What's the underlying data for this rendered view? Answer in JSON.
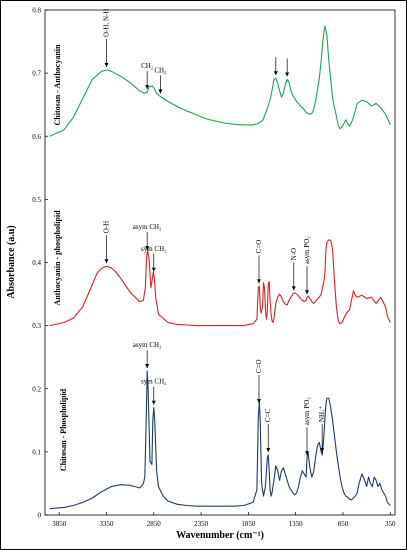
{
  "chart_data": {
    "type": "line",
    "xlabel": "Wavenumber (cm⁻¹)",
    "ylabel": "Absorbance (a.u)",
    "x_ticks": [
      3850,
      3350,
      2850,
      2350,
      1850,
      1350,
      850,
      350
    ],
    "xlim": [
      4000,
      300
    ],
    "ylim": [
      0,
      0.8
    ],
    "y_ticks": [
      0,
      0.1,
      0.2,
      0.3,
      0.4,
      0.5,
      0.6,
      0.7,
      0.8
    ],
    "y_tick_labels": [
      "0",
      "0.1",
      "0.2",
      "0.3",
      "0.4",
      "0.5",
      "0.6",
      "0.7",
      "0.8"
    ],
    "series": [
      {
        "name": "Chitosan - Anthocyanin",
        "color": "#1aa64a",
        "x": [
          3950,
          3800,
          3700,
          3600,
          3500,
          3400,
          3350,
          3300,
          3200,
          3100,
          3000,
          2950,
          2920,
          2900,
          2870,
          2850,
          2820,
          2780,
          2700,
          2600,
          2500,
          2400,
          2300,
          2200,
          2100,
          2000,
          1900,
          1800,
          1750,
          1700,
          1680,
          1660,
          1640,
          1620,
          1600,
          1580,
          1560,
          1540,
          1520,
          1500,
          1480,
          1460,
          1440,
          1420,
          1400,
          1380,
          1360,
          1340,
          1320,
          1300,
          1280,
          1260,
          1240,
          1220,
          1200,
          1180,
          1160,
          1140,
          1120,
          1100,
          1080,
          1060,
          1040,
          1020,
          1000,
          980,
          960,
          940,
          920,
          900,
          880,
          860,
          840,
          820,
          800,
          780,
          760,
          740,
          720,
          700,
          650,
          600,
          550,
          500,
          450,
          400,
          350
        ],
        "values": [
          0.6,
          0.61,
          0.63,
          0.66,
          0.69,
          0.703,
          0.705,
          0.703,
          0.695,
          0.685,
          0.672,
          0.668,
          0.67,
          0.678,
          0.68,
          0.677,
          0.668,
          0.663,
          0.655,
          0.647,
          0.64,
          0.634,
          0.628,
          0.624,
          0.621,
          0.619,
          0.618,
          0.618,
          0.62,
          0.625,
          0.632,
          0.64,
          0.648,
          0.658,
          0.672,
          0.69,
          0.692,
          0.684,
          0.672,
          0.662,
          0.668,
          0.682,
          0.69,
          0.685,
          0.672,
          0.665,
          0.66,
          0.655,
          0.652,
          0.648,
          0.645,
          0.642,
          0.638,
          0.636,
          0.635,
          0.636,
          0.642,
          0.655,
          0.672,
          0.692,
          0.72,
          0.755,
          0.775,
          0.76,
          0.72,
          0.69,
          0.66,
          0.645,
          0.632,
          0.618,
          0.612,
          0.615,
          0.62,
          0.626,
          0.62,
          0.616,
          0.622,
          0.63,
          0.64,
          0.652,
          0.657,
          0.655,
          0.648,
          0.652,
          0.645,
          0.635,
          0.618
        ]
      },
      {
        "name": "Anthocyanin - phospholipid",
        "color": "#e02020",
        "x": [
          3950,
          3800,
          3700,
          3600,
          3500,
          3450,
          3400,
          3350,
          3300,
          3250,
          3200,
          3100,
          3000,
          2960,
          2940,
          2925,
          2915,
          2900,
          2880,
          2865,
          2855,
          2845,
          2830,
          2800,
          2700,
          2600,
          2500,
          2400,
          2300,
          2200,
          2100,
          2000,
          1900,
          1800,
          1760,
          1745,
          1735,
          1725,
          1715,
          1700,
          1690,
          1680,
          1670,
          1660,
          1650,
          1640,
          1630,
          1620,
          1610,
          1600,
          1590,
          1580,
          1560,
          1540,
          1520,
          1500,
          1480,
          1460,
          1440,
          1420,
          1400,
          1380,
          1360,
          1340,
          1320,
          1300,
          1280,
          1260,
          1240,
          1230,
          1220,
          1200,
          1180,
          1160,
          1140,
          1120,
          1100,
          1080,
          1060,
          1050,
          1040,
          1030,
          1020,
          1000,
          980,
          960,
          940,
          920,
          900,
          880,
          860,
          840,
          820,
          800,
          780,
          760,
          740,
          720,
          700,
          650,
          600,
          550,
          500,
          450,
          400,
          380,
          350
        ],
        "values": [
          0.3,
          0.305,
          0.312,
          0.33,
          0.365,
          0.383,
          0.391,
          0.394,
          0.392,
          0.385,
          0.375,
          0.353,
          0.338,
          0.34,
          0.36,
          0.41,
          0.42,
          0.405,
          0.36,
          0.375,
          0.385,
          0.376,
          0.345,
          0.318,
          0.305,
          0.302,
          0.301,
          0.3,
          0.3,
          0.3,
          0.3,
          0.3,
          0.3,
          0.303,
          0.31,
          0.36,
          0.363,
          0.33,
          0.32,
          0.33,
          0.368,
          0.36,
          0.328,
          0.31,
          0.322,
          0.365,
          0.37,
          0.34,
          0.318,
          0.308,
          0.305,
          0.31,
          0.335,
          0.345,
          0.35,
          0.345,
          0.338,
          0.334,
          0.333,
          0.34,
          0.345,
          0.35,
          0.352,
          0.35,
          0.347,
          0.343,
          0.34,
          0.338,
          0.34,
          0.345,
          0.347,
          0.343,
          0.338,
          0.335,
          0.338,
          0.342,
          0.345,
          0.35,
          0.365,
          0.372,
          0.385,
          0.42,
          0.432,
          0.436,
          0.435,
          0.42,
          0.37,
          0.33,
          0.308,
          0.303,
          0.305,
          0.312,
          0.318,
          0.322,
          0.325,
          0.34,
          0.355,
          0.348,
          0.345,
          0.348,
          0.343,
          0.345,
          0.335,
          0.345,
          0.33,
          0.315,
          0.305
        ]
      },
      {
        "name": "Chitosan - Phospholipid",
        "color": "#1c3a6e",
        "x": [
          3950,
          3800,
          3700,
          3600,
          3500,
          3400,
          3300,
          3200,
          3100,
          3050,
          3000,
          2980,
          2960,
          2945,
          2930,
          2920,
          2910,
          2890,
          2870,
          2860,
          2850,
          2840,
          2820,
          2800,
          2750,
          2700,
          2600,
          2500,
          2400,
          2300,
          2200,
          2100,
          2000,
          1900,
          1800,
          1760,
          1745,
          1735,
          1725,
          1710,
          1690,
          1670,
          1650,
          1640,
          1630,
          1620,
          1610,
          1600,
          1580,
          1560,
          1540,
          1520,
          1500,
          1480,
          1460,
          1440,
          1420,
          1400,
          1380,
          1360,
          1340,
          1320,
          1300,
          1280,
          1260,
          1240,
          1230,
          1220,
          1200,
          1180,
          1160,
          1140,
          1120,
          1100,
          1080,
          1070,
          1060,
          1050,
          1040,
          1030,
          1020,
          1000,
          980,
          960,
          940,
          920,
          900,
          880,
          860,
          840,
          820,
          800,
          780,
          760,
          740,
          720,
          700,
          680,
          650,
          620,
          600,
          580,
          560,
          540,
          520,
          500,
          480,
          460,
          440,
          420,
          400,
          380,
          350
        ],
        "values": [
          0.01,
          0.012,
          0.015,
          0.02,
          0.027,
          0.037,
          0.045,
          0.048,
          0.047,
          0.045,
          0.043,
          0.046,
          0.05,
          0.06,
          0.15,
          0.228,
          0.2,
          0.085,
          0.08,
          0.15,
          0.17,
          0.15,
          0.07,
          0.045,
          0.03,
          0.022,
          0.017,
          0.015,
          0.014,
          0.014,
          0.014,
          0.014,
          0.014,
          0.015,
          0.02,
          0.04,
          0.155,
          0.18,
          0.15,
          0.05,
          0.03,
          0.045,
          0.09,
          0.095,
          0.07,
          0.04,
          0.03,
          0.035,
          0.055,
          0.078,
          0.07,
          0.055,
          0.07,
          0.075,
          0.065,
          0.055,
          0.045,
          0.04,
          0.035,
          0.032,
          0.035,
          0.045,
          0.06,
          0.07,
          0.065,
          0.06,
          0.09,
          0.1,
          0.075,
          0.06,
          0.068,
          0.09,
          0.11,
          0.115,
          0.1,
          0.095,
          0.11,
          0.13,
          0.155,
          0.175,
          0.185,
          0.185,
          0.17,
          0.15,
          0.125,
          0.1,
          0.08,
          0.06,
          0.045,
          0.035,
          0.03,
          0.028,
          0.025,
          0.024,
          0.027,
          0.03,
          0.035,
          0.05,
          0.065,
          0.055,
          0.045,
          0.06,
          0.05,
          0.045,
          0.06,
          0.055,
          0.045,
          0.05,
          0.04,
          0.035,
          0.03,
          0.02,
          0.015
        ]
      }
    ],
    "annotations": [
      {
        "series": 0,
        "text": "O-H, N-H",
        "x": 3350,
        "rotate": -90
      },
      {
        "series": 0,
        "text": "CH₂",
        "x": 2920
      },
      {
        "series": 0,
        "text": "CH₂",
        "x": 2780
      },
      {
        "series": 0,
        "text": "",
        "x": 1560
      },
      {
        "series": 0,
        "text": "",
        "x": 1440
      },
      {
        "series": 1,
        "text": "O-H",
        "x": 3350,
        "rotate": -90
      },
      {
        "series": 1,
        "text": "asym CH₂",
        "x": 2920
      },
      {
        "series": 1,
        "text": "sym CH₂",
        "x": 2850
      },
      {
        "series": 1,
        "text": "C=O",
        "x": 1738,
        "rotate": -90
      },
      {
        "series": 1,
        "text": "N-O",
        "x": 1370,
        "rotate": -90
      },
      {
        "series": 1,
        "text": "asym PO₂",
        "x": 1230,
        "rotate": -90
      },
      {
        "series": 2,
        "text": "asym CH₂",
        "x": 2920
      },
      {
        "series": 2,
        "text": "sym CH₂",
        "x": 2850
      },
      {
        "series": 2,
        "text": "C=O",
        "x": 1738,
        "rotate": -90
      },
      {
        "series": 2,
        "text": "C=C",
        "x": 1640,
        "rotate": -90
      },
      {
        "series": 2,
        "text": "asym PO₂",
        "x": 1230,
        "rotate": -90
      },
      {
        "series": 2,
        "text": "NH₃⁺",
        "x": 1070,
        "rotate": -90
      }
    ]
  }
}
